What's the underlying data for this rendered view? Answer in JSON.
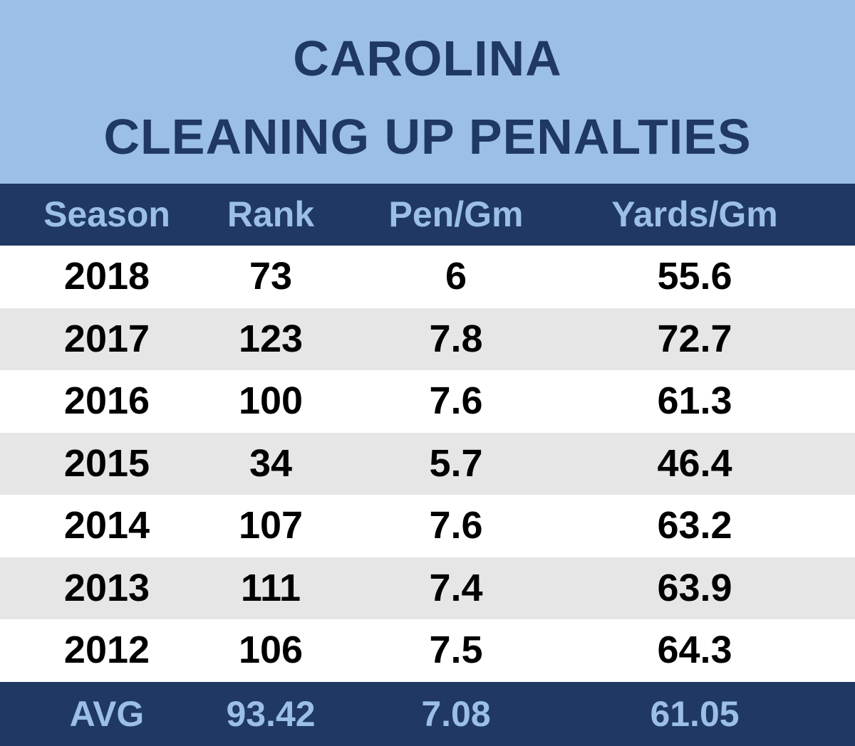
{
  "title": [
    "CAROLINA",
    "CLEANING UP PENALTIES"
  ],
  "table": {
    "header": [
      "Season",
      "Rank",
      "Pen/Gm",
      "Yards/Gm"
    ],
    "rows": [
      [
        2018,
        73,
        6,
        55.6
      ],
      [
        2017,
        123,
        7.8,
        72.7
      ],
      [
        2016,
        100,
        7.6,
        61.3
      ],
      [
        2015,
        34,
        5.7,
        46.4
      ],
      [
        2014,
        107,
        7.6,
        63.2
      ],
      [
        2013,
        111,
        7.4,
        63.9
      ],
      [
        2012,
        106,
        7.5,
        64.3
      ]
    ],
    "footer": [
      "AVG",
      93.42,
      7.08,
      61.05
    ]
  }
}
